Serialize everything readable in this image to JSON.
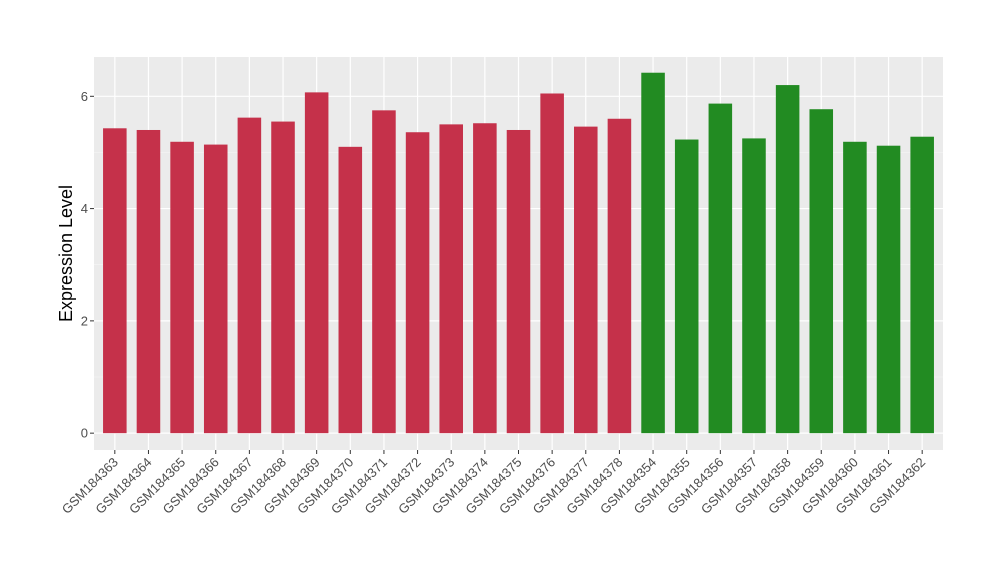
{
  "chart_data": {
    "type": "bar",
    "title": "",
    "xlabel": "",
    "ylabel": "Expression Level",
    "ylim": [
      -0.3,
      6.7
    ],
    "yticks": [
      0,
      2,
      4,
      6
    ],
    "grid": true,
    "legend": "none",
    "colors": {
      "group_1": "#C5314A",
      "group_2": "#228B22",
      "panel_bg": "#EBEBEB",
      "grid": "#FFFFFF"
    },
    "categories": [
      "GSM184363",
      "GSM184364",
      "GSM184365",
      "GSM184366",
      "GSM184367",
      "GSM184368",
      "GSM184369",
      "GSM184370",
      "GSM184371",
      "GSM184372",
      "GSM184373",
      "GSM184374",
      "GSM184375",
      "GSM184376",
      "GSM184377",
      "GSM184378",
      "GSM184354",
      "GSM184355",
      "GSM184356",
      "GSM184357",
      "GSM184358",
      "GSM184359",
      "GSM184360",
      "GSM184361",
      "GSM184362"
    ],
    "values": [
      5.43,
      5.4,
      5.19,
      5.14,
      5.62,
      5.55,
      6.07,
      5.1,
      5.75,
      5.36,
      5.5,
      5.52,
      5.4,
      6.05,
      5.46,
      5.6,
      6.42,
      5.23,
      5.87,
      5.25,
      6.2,
      5.77,
      5.19,
      5.12,
      5.28
    ],
    "groups": [
      1,
      1,
      1,
      1,
      1,
      1,
      1,
      1,
      1,
      1,
      1,
      1,
      1,
      1,
      1,
      1,
      2,
      2,
      2,
      2,
      2,
      2,
      2,
      2,
      2
    ]
  }
}
